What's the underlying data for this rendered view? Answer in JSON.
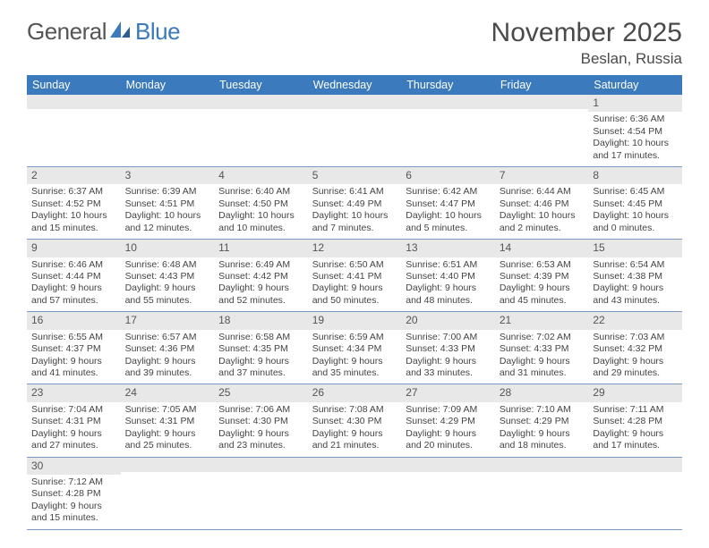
{
  "logo": {
    "part1": "General",
    "part2": "Blue"
  },
  "title": "November 2025",
  "location": "Beslan, Russia",
  "day_headers": [
    "Sunday",
    "Monday",
    "Tuesday",
    "Wednesday",
    "Thursday",
    "Friday",
    "Saturday"
  ],
  "header_bg": "#3a7abd",
  "daynum_bg": "#e8e8e8",
  "border_color": "#7a9ac5",
  "weeks": [
    [
      null,
      null,
      null,
      null,
      null,
      null,
      {
        "n": "1",
        "sr": "6:36 AM",
        "ss": "4:54 PM",
        "dl": "10 hours and 17 minutes."
      }
    ],
    [
      {
        "n": "2",
        "sr": "6:37 AM",
        "ss": "4:52 PM",
        "dl": "10 hours and 15 minutes."
      },
      {
        "n": "3",
        "sr": "6:39 AM",
        "ss": "4:51 PM",
        "dl": "10 hours and 12 minutes."
      },
      {
        "n": "4",
        "sr": "6:40 AM",
        "ss": "4:50 PM",
        "dl": "10 hours and 10 minutes."
      },
      {
        "n": "5",
        "sr": "6:41 AM",
        "ss": "4:49 PM",
        "dl": "10 hours and 7 minutes."
      },
      {
        "n": "6",
        "sr": "6:42 AM",
        "ss": "4:47 PM",
        "dl": "10 hours and 5 minutes."
      },
      {
        "n": "7",
        "sr": "6:44 AM",
        "ss": "4:46 PM",
        "dl": "10 hours and 2 minutes."
      },
      {
        "n": "8",
        "sr": "6:45 AM",
        "ss": "4:45 PM",
        "dl": "10 hours and 0 minutes."
      }
    ],
    [
      {
        "n": "9",
        "sr": "6:46 AM",
        "ss": "4:44 PM",
        "dl": "9 hours and 57 minutes."
      },
      {
        "n": "10",
        "sr": "6:48 AM",
        "ss": "4:43 PM",
        "dl": "9 hours and 55 minutes."
      },
      {
        "n": "11",
        "sr": "6:49 AM",
        "ss": "4:42 PM",
        "dl": "9 hours and 52 minutes."
      },
      {
        "n": "12",
        "sr": "6:50 AM",
        "ss": "4:41 PM",
        "dl": "9 hours and 50 minutes."
      },
      {
        "n": "13",
        "sr": "6:51 AM",
        "ss": "4:40 PM",
        "dl": "9 hours and 48 minutes."
      },
      {
        "n": "14",
        "sr": "6:53 AM",
        "ss": "4:39 PM",
        "dl": "9 hours and 45 minutes."
      },
      {
        "n": "15",
        "sr": "6:54 AM",
        "ss": "4:38 PM",
        "dl": "9 hours and 43 minutes."
      }
    ],
    [
      {
        "n": "16",
        "sr": "6:55 AM",
        "ss": "4:37 PM",
        "dl": "9 hours and 41 minutes."
      },
      {
        "n": "17",
        "sr": "6:57 AM",
        "ss": "4:36 PM",
        "dl": "9 hours and 39 minutes."
      },
      {
        "n": "18",
        "sr": "6:58 AM",
        "ss": "4:35 PM",
        "dl": "9 hours and 37 minutes."
      },
      {
        "n": "19",
        "sr": "6:59 AM",
        "ss": "4:34 PM",
        "dl": "9 hours and 35 minutes."
      },
      {
        "n": "20",
        "sr": "7:00 AM",
        "ss": "4:33 PM",
        "dl": "9 hours and 33 minutes."
      },
      {
        "n": "21",
        "sr": "7:02 AM",
        "ss": "4:33 PM",
        "dl": "9 hours and 31 minutes."
      },
      {
        "n": "22",
        "sr": "7:03 AM",
        "ss": "4:32 PM",
        "dl": "9 hours and 29 minutes."
      }
    ],
    [
      {
        "n": "23",
        "sr": "7:04 AM",
        "ss": "4:31 PM",
        "dl": "9 hours and 27 minutes."
      },
      {
        "n": "24",
        "sr": "7:05 AM",
        "ss": "4:31 PM",
        "dl": "9 hours and 25 minutes."
      },
      {
        "n": "25",
        "sr": "7:06 AM",
        "ss": "4:30 PM",
        "dl": "9 hours and 23 minutes."
      },
      {
        "n": "26",
        "sr": "7:08 AM",
        "ss": "4:30 PM",
        "dl": "9 hours and 21 minutes."
      },
      {
        "n": "27",
        "sr": "7:09 AM",
        "ss": "4:29 PM",
        "dl": "9 hours and 20 minutes."
      },
      {
        "n": "28",
        "sr": "7:10 AM",
        "ss": "4:29 PM",
        "dl": "9 hours and 18 minutes."
      },
      {
        "n": "29",
        "sr": "7:11 AM",
        "ss": "4:28 PM",
        "dl": "9 hours and 17 minutes."
      }
    ],
    [
      {
        "n": "30",
        "sr": "7:12 AM",
        "ss": "4:28 PM",
        "dl": "9 hours and 15 minutes."
      },
      null,
      null,
      null,
      null,
      null,
      null
    ]
  ],
  "labels": {
    "sunrise": "Sunrise:",
    "sunset": "Sunset:",
    "daylight": "Daylight:"
  }
}
